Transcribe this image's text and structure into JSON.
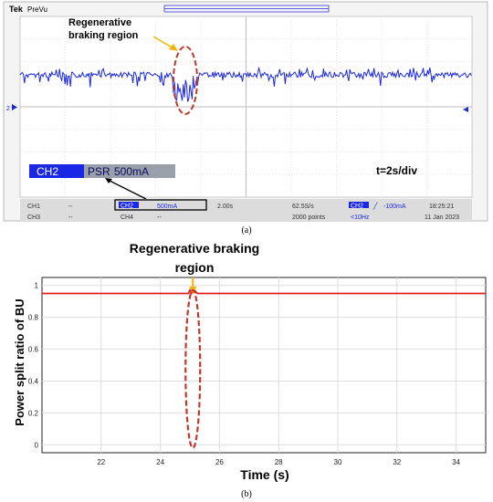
{
  "scope": {
    "brand": "Tek",
    "mode": "PreVu",
    "annotation": [
      "Regenerative",
      "braking region"
    ],
    "timebase_label": "t=2s/div",
    "ch_label": "CH2",
    "psr_label": "PSR",
    "psr_value": "500mA",
    "ch2_marker": "2",
    "bottom": {
      "ch1": "CH1",
      "ch3": "CH3",
      "dash1": "--",
      "dash3": "--",
      "ch2": "CH2",
      "ch2_scale": "500mA",
      "ch4": "CH4",
      "dash4": "--",
      "timediv": "2.00s",
      "rate": "62.5S/s",
      "points": "2000 points",
      "trig_ch": "CH2",
      "trig_level": "-100mA",
      "bw": "<10Hz",
      "time": "18:25:21",
      "date": "11 Jan 2023"
    },
    "colors": {
      "trace": "#1a28e6",
      "annotation": "#f5b400",
      "ellipse": "#c0392b",
      "panel_bg": "#2a33d4"
    }
  },
  "caption_a": "(a)",
  "caption_b": "(b)",
  "chart_data": {
    "type": "line",
    "title": [
      "Regenerative braking",
      "region"
    ],
    "xlabel": "Time (s)",
    "ylabel": "Power split ratio of BU",
    "xlim": [
      20,
      35
    ],
    "ylim": [
      -0.05,
      1.05
    ],
    "xticks": [
      22,
      24,
      26,
      28,
      30,
      32,
      34
    ],
    "yticks": [
      0,
      0.2,
      0.4,
      0.6,
      0.8,
      1
    ],
    "ytick_labels": [
      "0",
      "0.2",
      "0.4",
      "0.6",
      "0.8",
      "1"
    ],
    "grid": true,
    "series": [
      {
        "x": [
          20,
          24.95,
          25.0,
          25.05,
          25.15,
          25.25,
          35
        ],
        "y": [
          0.95,
          0.95,
          0.97,
          0.95,
          0.97,
          0.95,
          0.95
        ],
        "color": "#e02020"
      }
    ],
    "annotation_color": "#f5b400",
    "ellipse_color": "#c0392b"
  }
}
